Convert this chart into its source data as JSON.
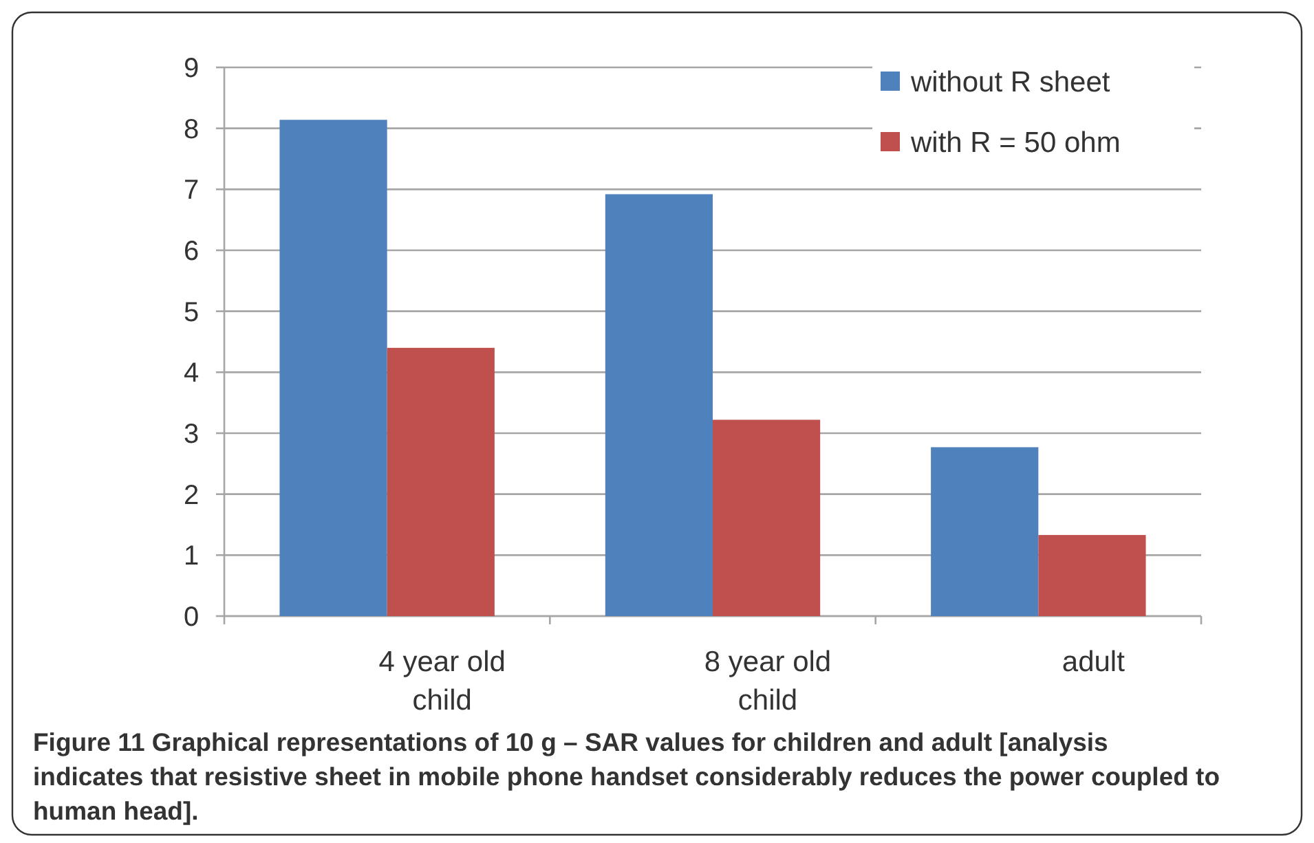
{
  "chart_data": {
    "type": "bar",
    "categories": [
      "4 year old child",
      "8 year old child",
      "adult"
    ],
    "series": [
      {
        "name": "without R sheet",
        "color": "#4f81bd",
        "values": [
          8.14,
          6.92,
          2.77
        ]
      },
      {
        "name": "with R = 50 ohm",
        "color": "#c0504d",
        "values": [
          4.4,
          3.22,
          1.33
        ]
      }
    ],
    "ylim": [
      0,
      9
    ],
    "yticks": [
      0,
      1,
      2,
      3,
      4,
      5,
      6,
      7,
      8,
      9
    ],
    "grid": "y",
    "legend": "top right",
    "annotations": [
      "Figure 11 Graphical representations of 10 g – SAR values for children and adult [analysis indicates that resistive sheet in mobile phone handset considerably reduces the power coupled to human head]."
    ]
  }
}
